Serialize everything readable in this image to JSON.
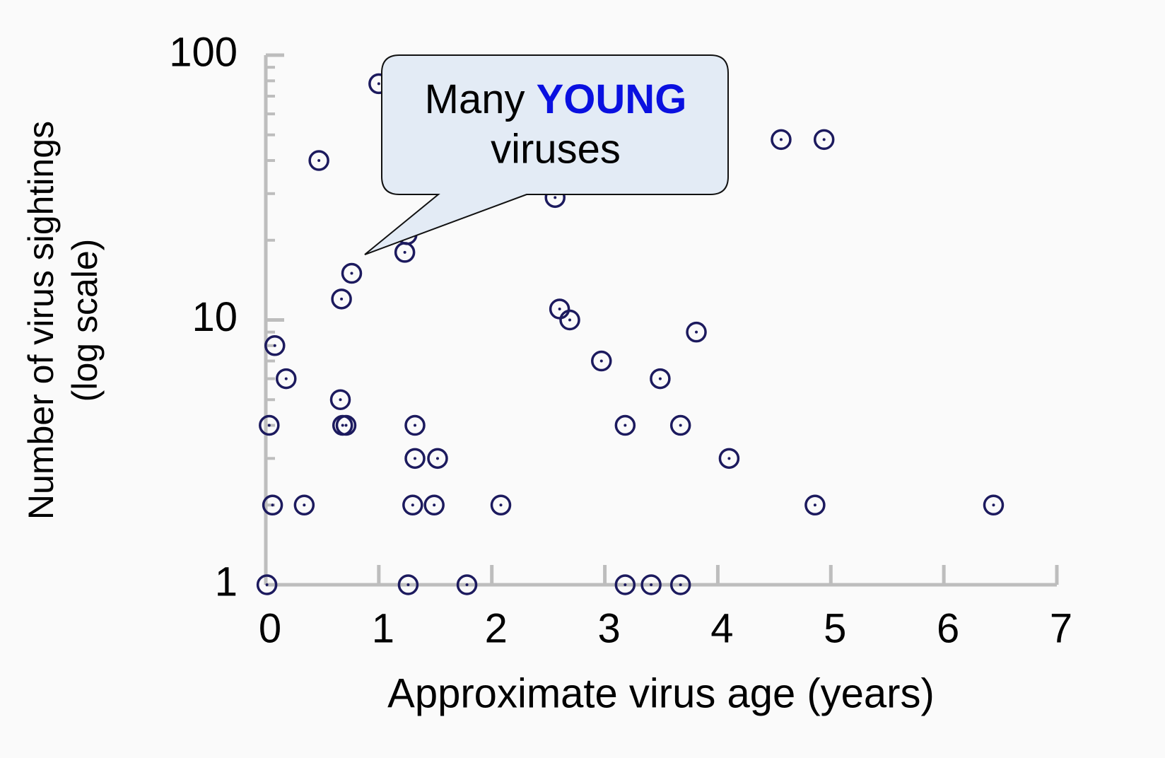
{
  "chart_data": {
    "type": "scatter",
    "x_label": "Approximate virus age (years)",
    "y_label": [
      "Number of virus sightings",
      "(log scale)"
    ],
    "annotation": {
      "parts": [
        "Many ",
        "YOUNG"
      ],
      "line2": "viruses",
      "highlight_color": "#0a10e0"
    },
    "xlim": [
      0,
      7
    ],
    "xticks": [
      0,
      1,
      2,
      3,
      4,
      5,
      6,
      7
    ],
    "ylim": [
      1,
      100
    ],
    "yticks": [
      1,
      10,
      100
    ],
    "yminorticks": [
      2,
      3,
      4,
      5,
      6,
      7,
      8,
      9,
      20,
      30,
      40,
      50,
      60,
      70,
      80,
      90
    ],
    "log_y": true,
    "series": [
      {
        "name": "viruses",
        "color": "#1c1a5e",
        "x": [
          1.0,
          0.47,
          4.56,
          4.94,
          2.56,
          1.23,
          1.25,
          0.76,
          0.67,
          2.6,
          2.69,
          3.81,
          0.08,
          2.97,
          0.18,
          3.49,
          0.66,
          0.03,
          0.68,
          0.71,
          1.32,
          3.18,
          3.67,
          1.32,
          1.52,
          4.1,
          0.06,
          0.34,
          1.3,
          1.49,
          2.08,
          4.86,
          6.44,
          0.01,
          1.26,
          1.78,
          3.18,
          3.41,
          3.67
        ],
        "values": [
          78,
          40,
          48,
          48,
          29,
          18,
          21,
          15,
          12,
          11,
          10,
          9,
          8,
          7,
          6,
          6,
          5,
          4,
          4,
          4,
          4,
          4,
          4,
          3,
          3,
          3,
          2,
          2,
          2,
          2,
          2,
          2,
          2,
          1,
          1,
          1,
          1,
          1,
          1
        ]
      }
    ]
  }
}
